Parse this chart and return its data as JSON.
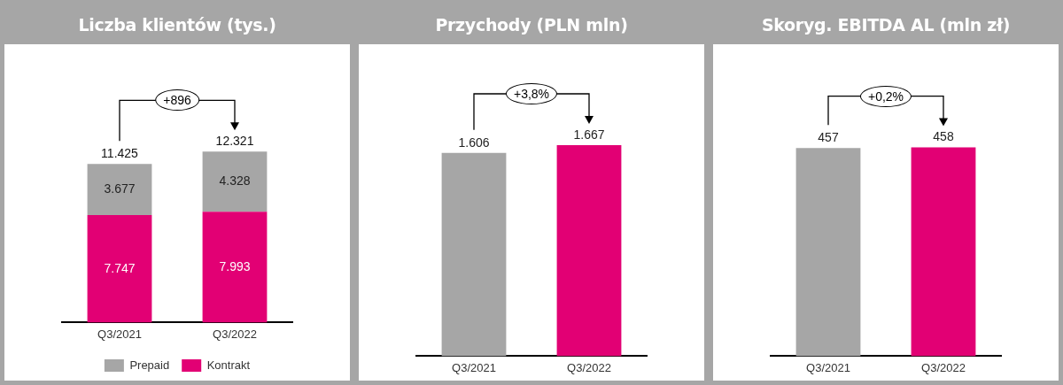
{
  "chart_data": [
    {
      "type": "bar",
      "title": "Liczba klientów (tys.)",
      "categories": [
        "Q3/2021",
        "Q3/2022"
      ],
      "stacked": true,
      "legend": "bottom",
      "series": [
        {
          "name": "Kontrakt",
          "color": "#e20074",
          "values": [
            7747,
            7993
          ],
          "value_labels": [
            "7.747",
            "7.993"
          ]
        },
        {
          "name": "Prepaid",
          "color": "#a6a6a6",
          "values": [
            3677,
            4328
          ],
          "value_labels": [
            "3.677",
            "4.328"
          ]
        }
      ],
      "totals": [
        "11.425",
        "12.321"
      ],
      "annotations": [
        "+896"
      ]
    },
    {
      "type": "bar",
      "title": "Przychody  (PLN mln)",
      "categories": [
        "Q3/2021",
        "Q3/2022"
      ],
      "values": [
        1606,
        1667
      ],
      "colors": [
        "#a6a6a6",
        "#e20074"
      ],
      "value_labels": [
        "1.606",
        "1.667"
      ],
      "annotations": [
        "+3,8%"
      ]
    },
    {
      "type": "bar",
      "title": "Skoryg. EBITDA AL (mln zł)",
      "categories": [
        "Q3/2021",
        "Q3/2022"
      ],
      "values": [
        457,
        458
      ],
      "colors": [
        "#a6a6a6",
        "#e20074"
      ],
      "data_labels": true,
      "annotations": [
        "+0,2%"
      ]
    }
  ]
}
